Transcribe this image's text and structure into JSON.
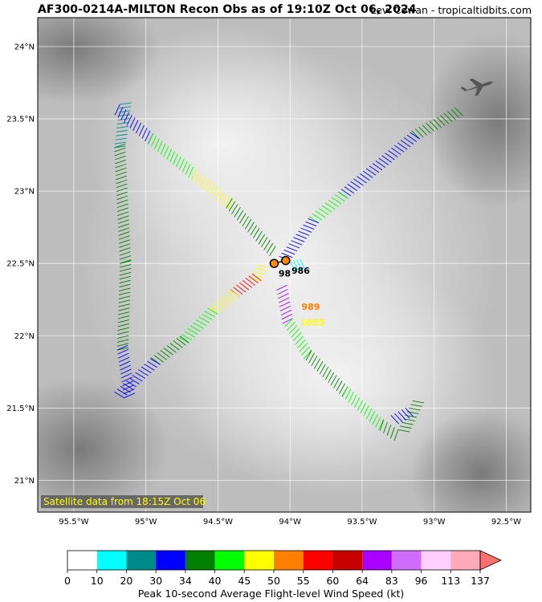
{
  "header": {
    "title": "AF300-0214A-MILTON Recon Obs as of 19:10Z Oct 06, 2024",
    "credit": "Levi Cowan - tropicaltidbits.com"
  },
  "map": {
    "lat_labels": [
      "24°N",
      "23.5°N",
      "23°N",
      "22.5°N",
      "22°N",
      "21.5°N",
      "21°N"
    ],
    "lat_values": [
      24,
      23.5,
      23,
      22.5,
      22,
      21.5,
      21
    ],
    "lon_labels": [
      "95.5°W",
      "95°W",
      "94.5°W",
      "94°W",
      "93.5°W",
      "93°W",
      "92.5°W"
    ],
    "lon_values": [
      -95.5,
      -95,
      -94.5,
      -94,
      -93.5,
      -93,
      -92.5
    ],
    "lon_range": [
      -95.75,
      -92.33
    ],
    "lat_range": [
      20.78,
      24.2
    ],
    "satellite_note": "Satellite data from 18:15Z Oct 06",
    "satellite_note_color": "#ffff00",
    "annotations": [
      {
        "text": "986",
        "lon": -93.99,
        "lat": 22.43,
        "color": "#000000"
      },
      {
        "text": "98",
        "lon": -94.08,
        "lat": 22.41,
        "color": "#000000"
      },
      {
        "text": "989",
        "lon": -93.92,
        "lat": 22.18,
        "color": "#ff7f00"
      },
      {
        "text": "1055",
        "lon": -93.93,
        "lat": 22.07,
        "color": "#ffff00"
      }
    ],
    "center_fixes": [
      {
        "lon": -94.11,
        "lat": 22.5
      },
      {
        "lon": -94.03,
        "lat": 22.52
      }
    ],
    "aircraft_icon": "airplane-icon"
  },
  "colorbar": {
    "ticks": [
      "0",
      "10",
      "20",
      "30",
      "34",
      "40",
      "45",
      "50",
      "55",
      "60",
      "64",
      "83",
      "96",
      "113",
      "137"
    ],
    "colors": [
      "#ffffff",
      "#00ffff",
      "#008b8b",
      "#0000ff",
      "#008000",
      "#00ff00",
      "#ffff00",
      "#ff7f00",
      "#ff0000",
      "#c80000",
      "#aa00ff",
      "#d16cff",
      "#ffd0ff",
      "#ffaabb"
    ],
    "extend_color": "#ff6f6f",
    "label": "Peak 10-second Average Flight-level Wind Speed (kt)"
  }
}
